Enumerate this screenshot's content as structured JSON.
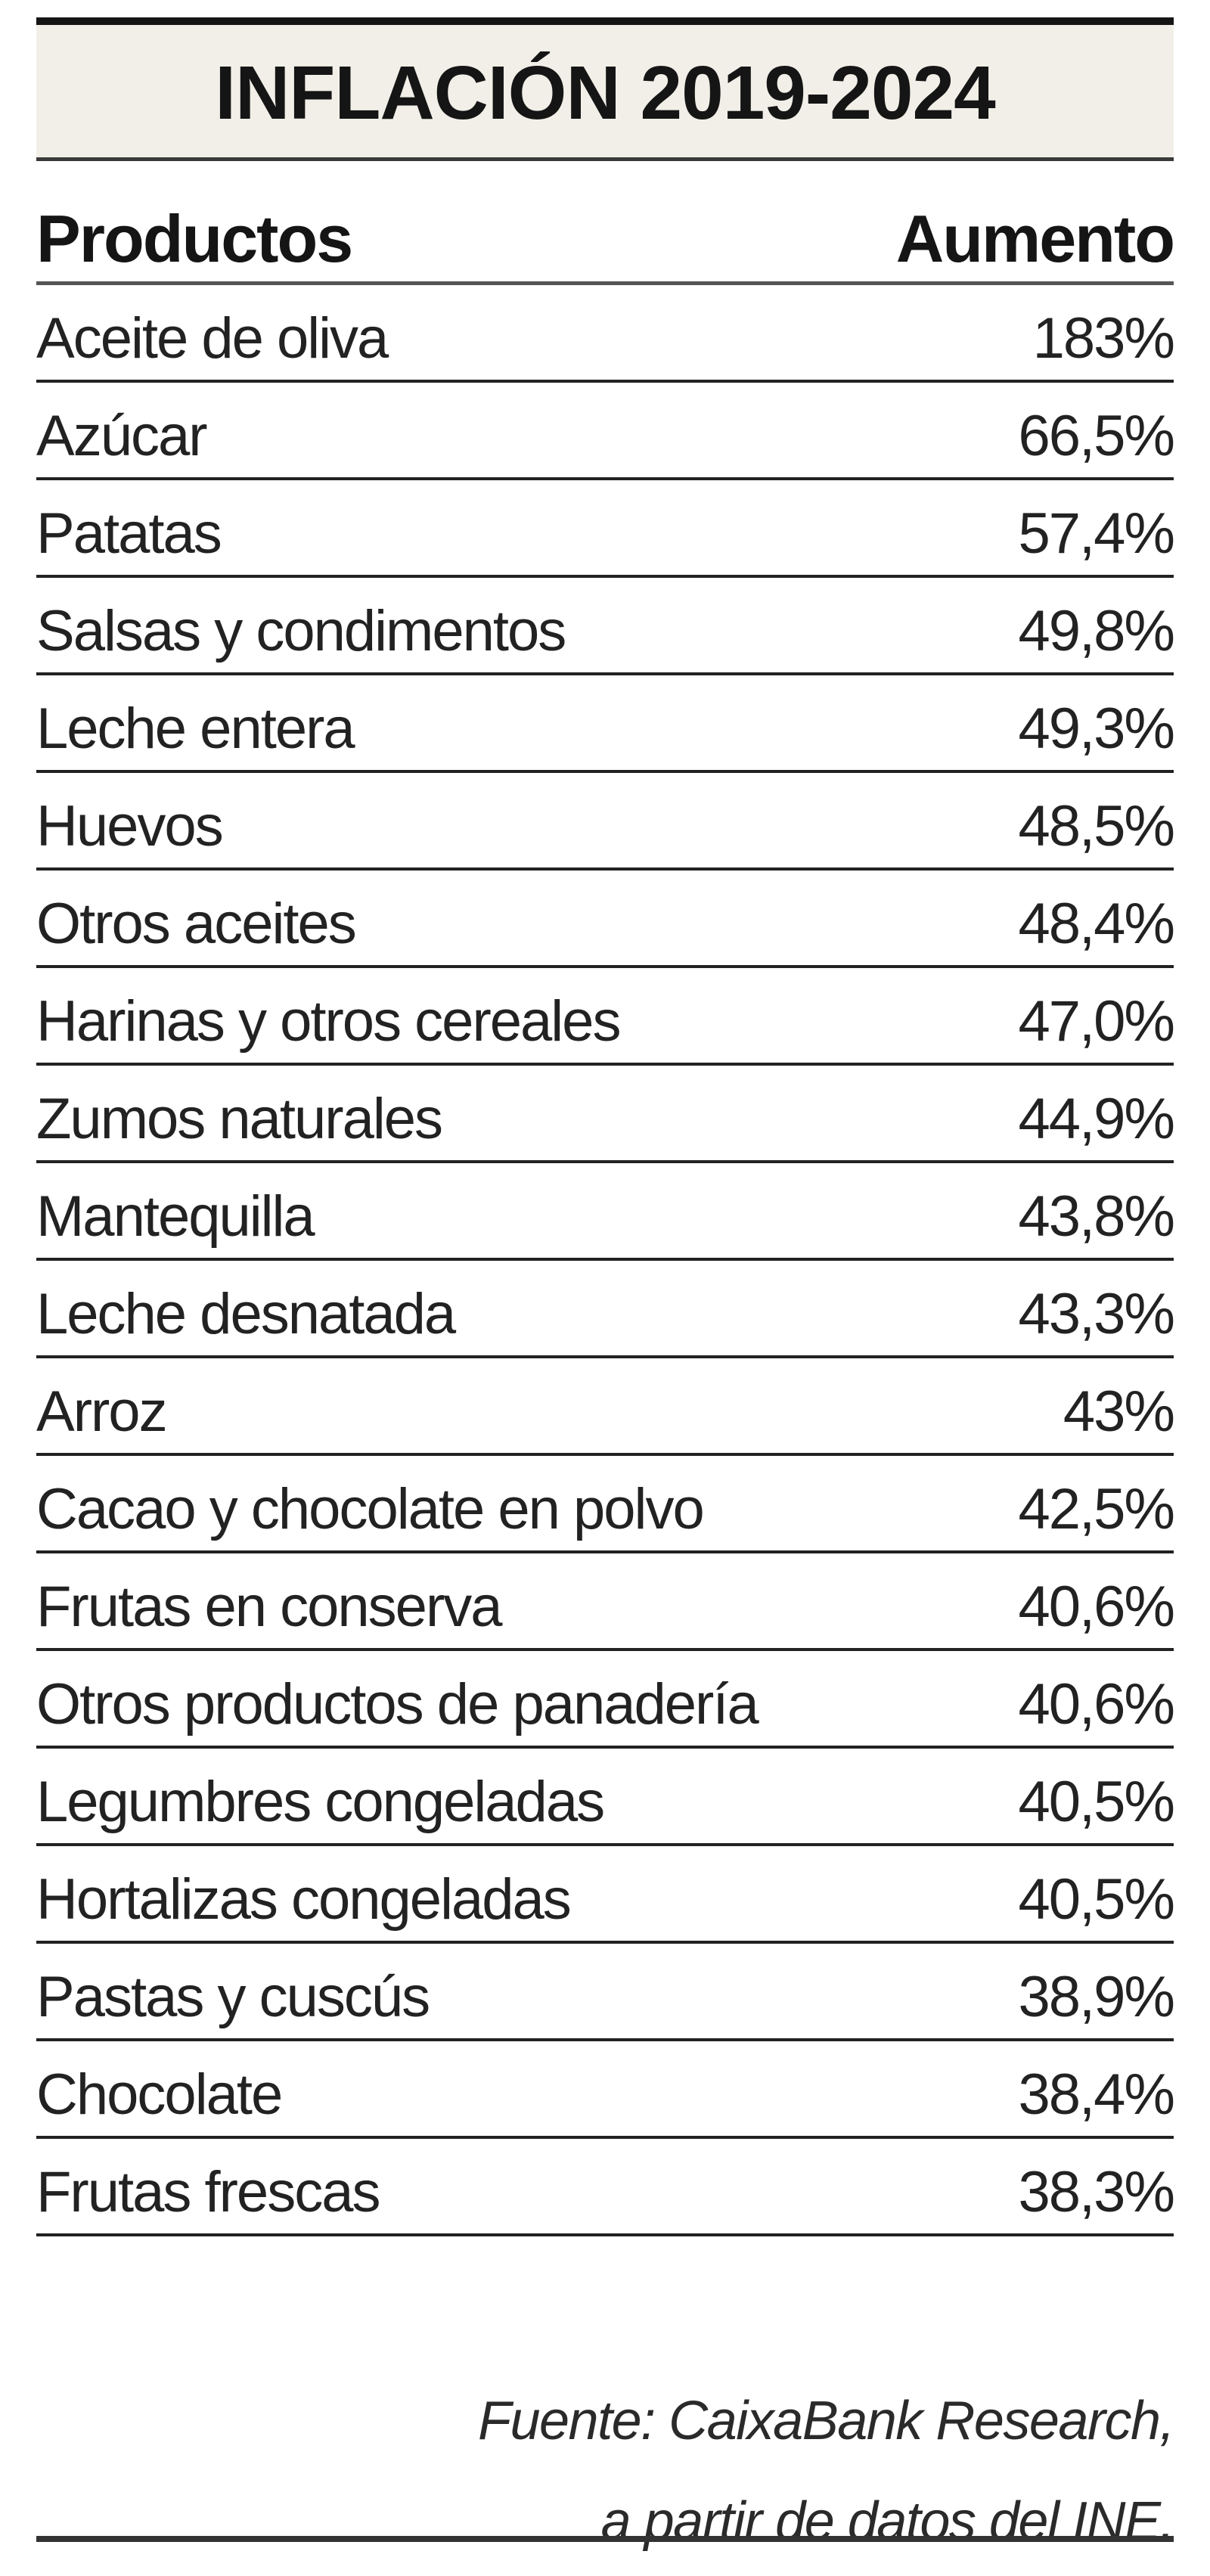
{
  "title": "INFLACIÓN 2019-2024",
  "headers": {
    "product": "Productos",
    "increase": "Aumento"
  },
  "rows": [
    {
      "product": "Aceite de oliva",
      "increase": "183%"
    },
    {
      "product": "Azúcar",
      "increase": "66,5%"
    },
    {
      "product": "Patatas",
      "increase": "57,4%"
    },
    {
      "product": "Salsas y condimentos",
      "increase": "49,8%"
    },
    {
      "product": "Leche entera",
      "increase": "49,3%"
    },
    {
      "product": "Huevos",
      "increase": "48,5%"
    },
    {
      "product": "Otros aceites",
      "increase": "48,4%"
    },
    {
      "product": "Harinas y otros cereales",
      "increase": "47,0%"
    },
    {
      "product": "Zumos naturales",
      "increase": "44,9%"
    },
    {
      "product": "Mantequilla",
      "increase": "43,8%"
    },
    {
      "product": "Leche desnatada",
      "increase": "43,3%"
    },
    {
      "product": "Arroz",
      "increase": "43%"
    },
    {
      "product": "Cacao y chocolate en polvo",
      "increase": "42,5%"
    },
    {
      "product": "Frutas en conserva",
      "increase": "40,6%"
    },
    {
      "product": "Otros productos de panadería",
      "increase": "40,6%"
    },
    {
      "product": "Legumbres congeladas",
      "increase": "40,5%"
    },
    {
      "product": "Hortalizas congeladas",
      "increase": "40,5%"
    },
    {
      "product": "Pastas y cuscús",
      "increase": "38,9%"
    },
    {
      "product": "Chocolate",
      "increase": "38,4%"
    },
    {
      "product": "Frutas frescas",
      "increase": "38,3%"
    }
  ],
  "source": {
    "line1": "Fuente: CaixaBank Research,",
    "line2": "a partir de datos del INE."
  }
}
